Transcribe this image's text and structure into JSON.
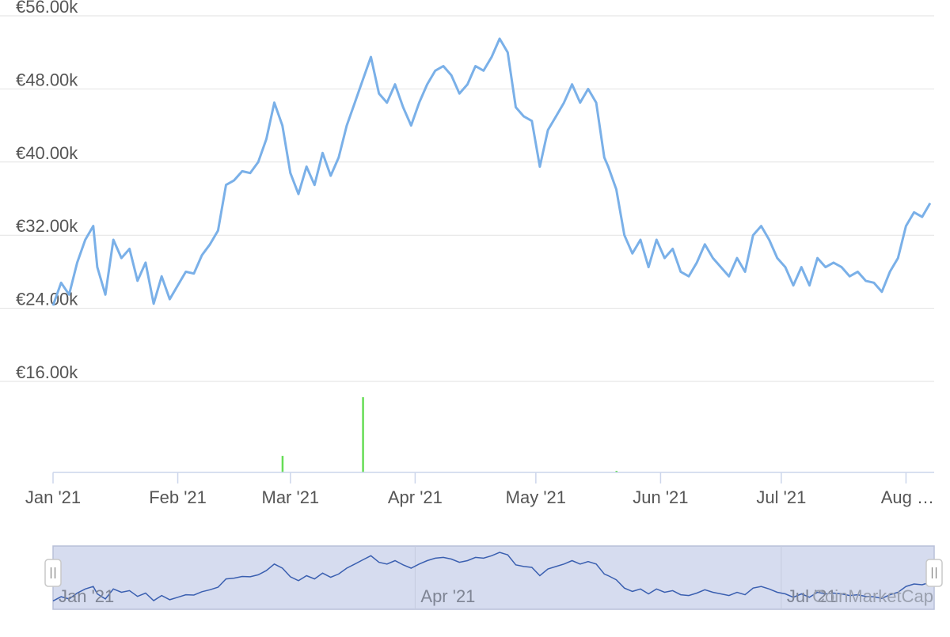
{
  "chart_data": {
    "type": "line",
    "title": "",
    "xlabel": "",
    "ylabel": "",
    "ylim": [
      14000,
      57000
    ],
    "y_ticks": [
      16000,
      24000,
      32000,
      40000,
      48000,
      56000
    ],
    "y_tick_labels": [
      "€16.00k",
      "€24.00k",
      "€32.00k",
      "€40.00k",
      "€48.00k",
      "€56.00k"
    ],
    "x_range": [
      "2021-01-01",
      "2021-08-08"
    ],
    "x_ticks": [
      "2021-01-01",
      "2021-02-01",
      "2021-03-01",
      "2021-04-01",
      "2021-05-01",
      "2021-06-01",
      "2021-07-01",
      "2021-08-01"
    ],
    "x_tick_labels": [
      "Jan '21",
      "Feb '21",
      "Mar '21",
      "Apr '21",
      "May '21",
      "Jun '21",
      "Jul '21",
      "Aug …"
    ],
    "grid": true,
    "line_color": "#7ab0e8",
    "series": [
      {
        "x": [
          "2021-01-01",
          "2021-01-03",
          "2021-01-05",
          "2021-01-07",
          "2021-01-09",
          "2021-01-11",
          "2021-01-12",
          "2021-01-14",
          "2021-01-16",
          "2021-01-18",
          "2021-01-20",
          "2021-01-22",
          "2021-01-24",
          "2021-01-26",
          "2021-01-28",
          "2021-01-30",
          "2021-02-01",
          "2021-02-03",
          "2021-02-05",
          "2021-02-07",
          "2021-02-09",
          "2021-02-11",
          "2021-02-13",
          "2021-02-15",
          "2021-02-17",
          "2021-02-19",
          "2021-02-21",
          "2021-02-23",
          "2021-02-25",
          "2021-02-27",
          "2021-03-01",
          "2021-03-03",
          "2021-03-05",
          "2021-03-07",
          "2021-03-09",
          "2021-03-11",
          "2021-03-13",
          "2021-03-15",
          "2021-03-17",
          "2021-03-19",
          "2021-03-21",
          "2021-03-23",
          "2021-03-25",
          "2021-03-27",
          "2021-03-29",
          "2021-03-31",
          "2021-04-02",
          "2021-04-04",
          "2021-04-06",
          "2021-04-08",
          "2021-04-10",
          "2021-04-12",
          "2021-04-14",
          "2021-04-16",
          "2021-04-18",
          "2021-04-20",
          "2021-04-22",
          "2021-04-24",
          "2021-04-26",
          "2021-04-28",
          "2021-04-30",
          "2021-05-02",
          "2021-05-04",
          "2021-05-06",
          "2021-05-08",
          "2021-05-10",
          "2021-05-12",
          "2021-05-14",
          "2021-05-16",
          "2021-05-18",
          "2021-05-19",
          "2021-05-21",
          "2021-05-23",
          "2021-05-25",
          "2021-05-27",
          "2021-05-29",
          "2021-05-31",
          "2021-06-02",
          "2021-06-04",
          "2021-06-06",
          "2021-06-08",
          "2021-06-10",
          "2021-06-12",
          "2021-06-14",
          "2021-06-16",
          "2021-06-18",
          "2021-06-20",
          "2021-06-22",
          "2021-06-24",
          "2021-06-26",
          "2021-06-28",
          "2021-06-30",
          "2021-07-02",
          "2021-07-04",
          "2021-07-06",
          "2021-07-08",
          "2021-07-10",
          "2021-07-12",
          "2021-07-14",
          "2021-07-16",
          "2021-07-18",
          "2021-07-20",
          "2021-07-22",
          "2021-07-24",
          "2021-07-26",
          "2021-07-28",
          "2021-07-30",
          "2021-08-01",
          "2021-08-03",
          "2021-08-05",
          "2021-08-07"
        ],
        "y": [
          24300,
          26800,
          25500,
          29000,
          31500,
          33000,
          28500,
          25500,
          31500,
          29500,
          30500,
          27000,
          29000,
          24500,
          27500,
          25000,
          26500,
          28000,
          27800,
          29800,
          31000,
          32500,
          37500,
          38000,
          39000,
          38800,
          40000,
          42500,
          46500,
          44000,
          38800,
          36500,
          39500,
          37500,
          41000,
          38500,
          40500,
          44000,
          46500,
          49000,
          51500,
          47500,
          46500,
          48500,
          46000,
          44000,
          46500,
          48500,
          50000,
          50500,
          49500,
          47500,
          48500,
          50500,
          50000,
          51500,
          53500,
          52000,
          46000,
          45000,
          44500,
          39500,
          43500,
          45000,
          46500,
          48500,
          46500,
          48000,
          46500,
          40500,
          39500,
          37000,
          32000,
          30000,
          31500,
          28500,
          31500,
          29500,
          30500,
          28000,
          27500,
          29000,
          31000,
          29500,
          28500,
          27500,
          29500,
          28000,
          32000,
          33000,
          31500,
          29500,
          28500,
          26500,
          28500,
          26500,
          29500,
          28500,
          29000,
          28500,
          27500,
          28000,
          27000,
          26800,
          25800,
          28000,
          29500,
          33000,
          34500,
          34000,
          35500
        ]
      }
    ],
    "volume_bars": [
      {
        "x": "2021-02-27",
        "value": 0.22
      },
      {
        "x": "2021-03-19",
        "value": 1.0
      },
      {
        "x": "2021-05-21",
        "value": 0.02
      }
    ],
    "volume_color": "#66dd55",
    "navigator": {
      "tick_labels": [
        "Jan '21",
        "Apr '21",
        "Jul '21"
      ],
      "watermark": "CoinMarketCap"
    }
  }
}
